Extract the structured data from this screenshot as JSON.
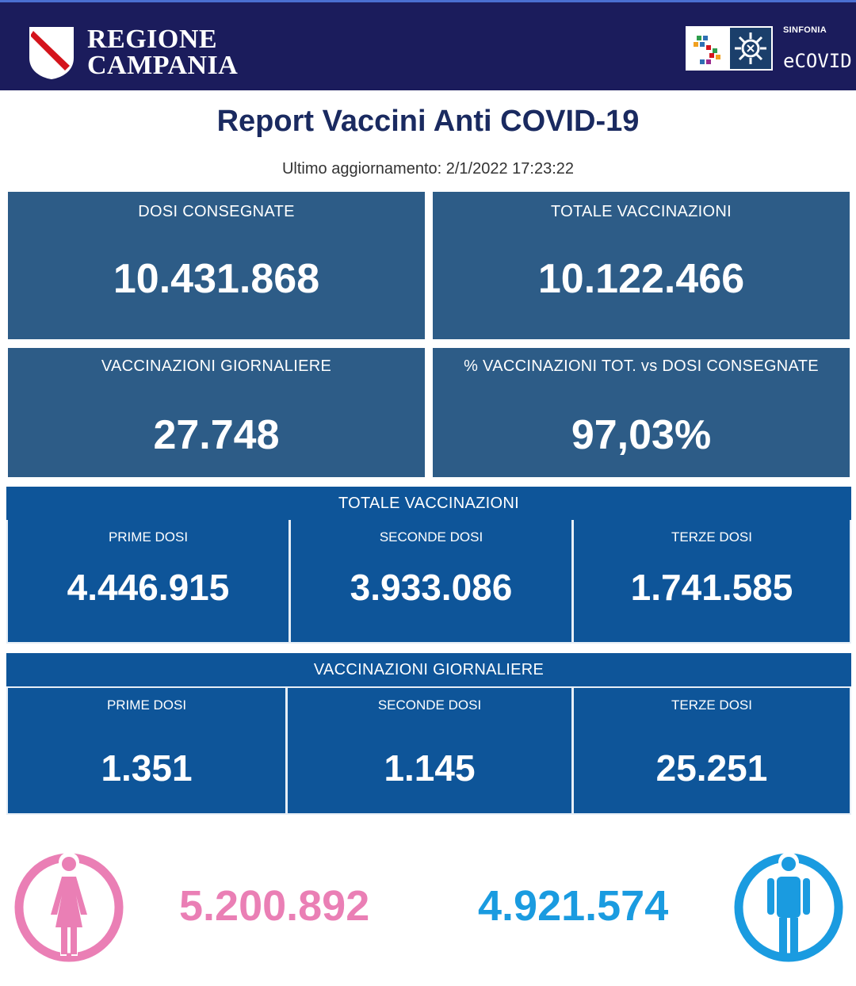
{
  "header": {
    "brand_line1": "REGIONE",
    "brand_line2": "CAMPANIA",
    "sinfonia_label": "SINFONIA",
    "ecovid_label": "eCOVID",
    "bg_color": "#1b1c5c"
  },
  "title": "Report Vaccini Anti COVID-19",
  "last_update": "Ultimo aggiornamento: 2/1/2022  17:23:22",
  "stats": {
    "dosi_consegnate": {
      "label": "DOSI  CONSEGNATE",
      "value": "10.431.868"
    },
    "totale_vaccinazioni": {
      "label": "TOTALE VACCINAZIONI",
      "value": "10.122.466"
    },
    "vaccinazioni_giornaliere": {
      "label": "VACCINAZIONI GIORNALIERE",
      "value": "27.748"
    },
    "percentuale": {
      "label": "% VACCINAZIONI TOT. vs DOSI CONSEGNATE",
      "value": "97,03%"
    }
  },
  "totale_section": {
    "title": "TOTALE VACCINAZIONI",
    "cells": [
      {
        "label": "PRIME DOSI",
        "value": "4.446.915"
      },
      {
        "label": "SECONDE DOSI",
        "value": "3.933.086"
      },
      {
        "label": "TERZE DOSI",
        "value": "1.741.585"
      }
    ]
  },
  "giornaliere_section": {
    "title": "VACCINAZIONI GIORNALIERE",
    "cells": [
      {
        "label": "PRIME DOSI",
        "value": "1.351"
      },
      {
        "label": "SECONDE DOSI",
        "value": "1.145"
      },
      {
        "label": "TERZE DOSI",
        "value": "25.251"
      }
    ]
  },
  "gender": {
    "female": {
      "value": "5.200.892",
      "icon": "female-person-icon",
      "color": "#ea7fb5"
    },
    "male": {
      "value": "4.921.574",
      "icon": "male-person-icon",
      "color": "#1a9be0"
    }
  },
  "colors": {
    "stat_box": "#2d5c87",
    "section_blue": "#0e5599",
    "title_text": "#1a2a60"
  }
}
